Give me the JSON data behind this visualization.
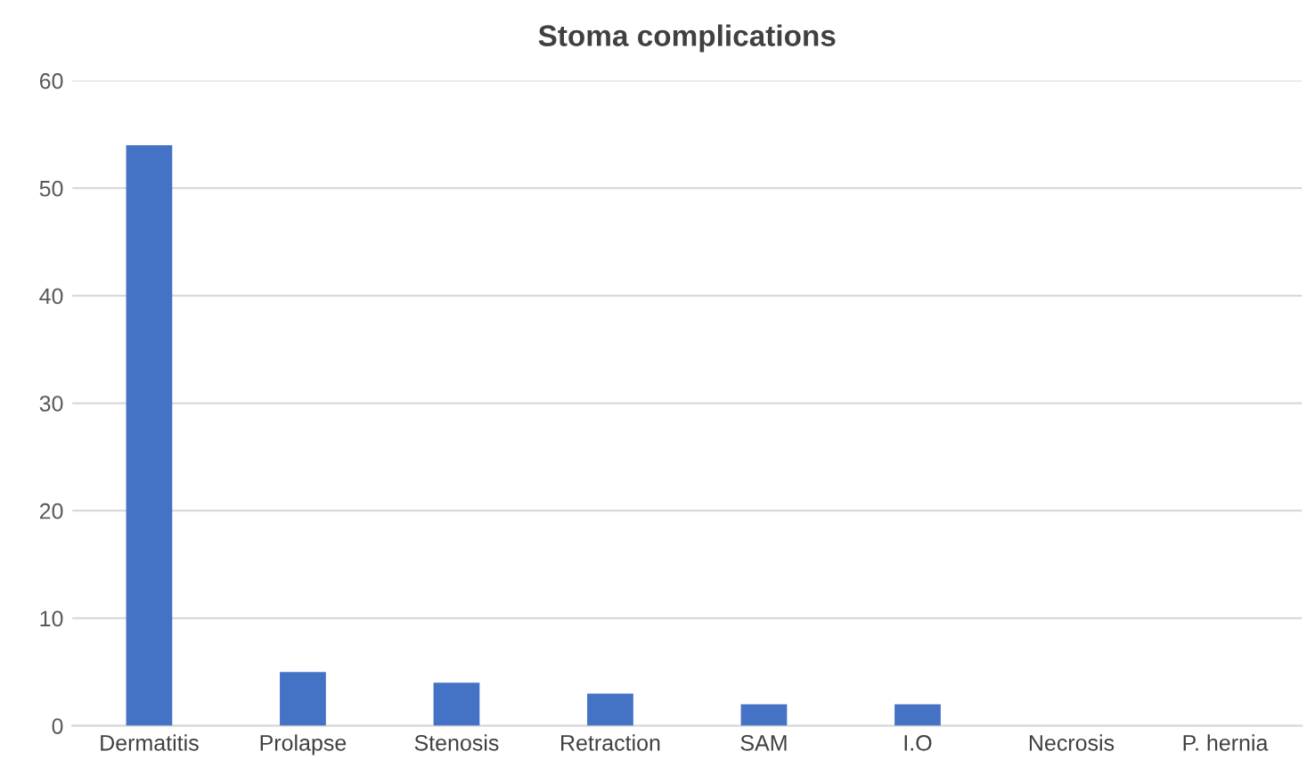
{
  "chart_data": {
    "type": "bar",
    "title": "Stoma complications",
    "categories": [
      "Dermatitis",
      "Prolapse",
      "Stenosis",
      "Retraction",
      "SAM",
      "I.O",
      "Necrosis",
      "P. hernia"
    ],
    "values": [
      54,
      5,
      4,
      3,
      2,
      2,
      0,
      0
    ],
    "color": "#4472c4",
    "ylim": [
      0,
      60
    ],
    "yticks": [
      0,
      10,
      20,
      30,
      40,
      50,
      60
    ],
    "grid": "y",
    "legend": false
  }
}
